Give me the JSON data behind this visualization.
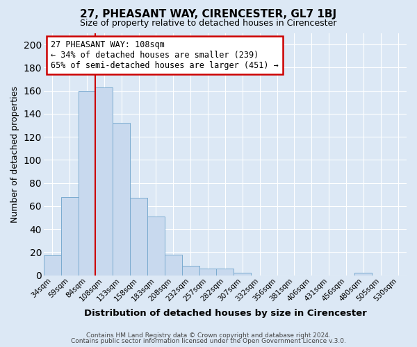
{
  "title": "27, PHEASANT WAY, CIRENCESTER, GL7 1BJ",
  "subtitle": "Size of property relative to detached houses in Cirencester",
  "xlabel": "Distribution of detached houses by size in Cirencester",
  "ylabel": "Number of detached properties",
  "bar_color": "#c8d9ee",
  "bar_edge_color": "#7aabcf",
  "plot_bg_color": "#dce8f5",
  "fig_bg_color": "#dce8f5",
  "grid_color": "#ffffff",
  "bin_labels": [
    "34sqm",
    "59sqm",
    "84sqm",
    "108sqm",
    "133sqm",
    "158sqm",
    "183sqm",
    "208sqm",
    "232sqm",
    "257sqm",
    "282sqm",
    "307sqm",
    "332sqm",
    "356sqm",
    "381sqm",
    "406sqm",
    "431sqm",
    "456sqm",
    "480sqm",
    "505sqm",
    "530sqm"
  ],
  "bar_heights": [
    17,
    68,
    160,
    163,
    132,
    67,
    51,
    18,
    8,
    6,
    6,
    2,
    0,
    0,
    0,
    0,
    0,
    0,
    2,
    0,
    0
  ],
  "vline_color": "#cc0000",
  "ylim": [
    0,
    210
  ],
  "yticks": [
    0,
    20,
    40,
    60,
    80,
    100,
    120,
    140,
    160,
    180,
    200
  ],
  "annotation_title": "27 PHEASANT WAY: 108sqm",
  "annotation_line1": "← 34% of detached houses are smaller (239)",
  "annotation_line2": "65% of semi-detached houses are larger (451) →",
  "annotation_box_color": "#ffffff",
  "annotation_box_edge": "#cc0000",
  "footer_line1": "Contains HM Land Registry data © Crown copyright and database right 2024.",
  "footer_line2": "Contains public sector information licensed under the Open Government Licence v.3.0."
}
